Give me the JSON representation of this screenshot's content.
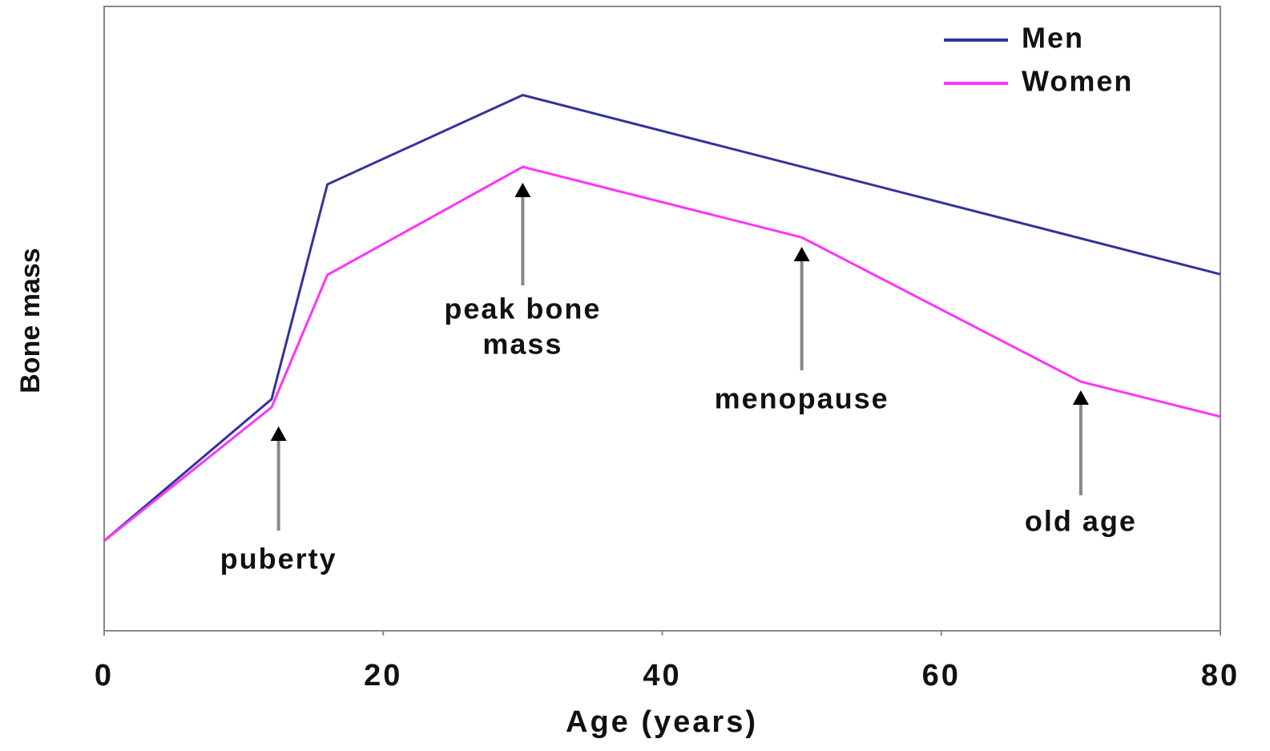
{
  "chart_data": {
    "type": "line",
    "xlabel": "Age (years)",
    "ylabel": "Bone mass",
    "xlim": [
      0,
      80
    ],
    "xticks": [
      0,
      20,
      40,
      60,
      80
    ],
    "ylim": [
      0,
      100
    ],
    "legend": "upper right",
    "series": [
      {
        "name": "Men",
        "color": "#333399",
        "x": [
          0,
          12,
          16,
          30,
          80
        ],
        "values": [
          14.4,
          37.1,
          71.5,
          85.8,
          57.1
        ]
      },
      {
        "name": "Women",
        "color": "#ff33ff",
        "x": [
          0,
          12,
          16,
          30,
          50,
          70,
          80
        ],
        "values": [
          14.4,
          35.8,
          57.0,
          74.3,
          63.0,
          39.9,
          34.3
        ]
      }
    ],
    "annotations": [
      {
        "x": 12.5,
        "lines": [
          "puberty"
        ]
      },
      {
        "x": 30,
        "lines": [
          "peak bone",
          "mass"
        ]
      },
      {
        "x": 50,
        "lines": [
          "menopause"
        ]
      },
      {
        "x": 70,
        "lines": [
          "old age"
        ]
      }
    ]
  }
}
